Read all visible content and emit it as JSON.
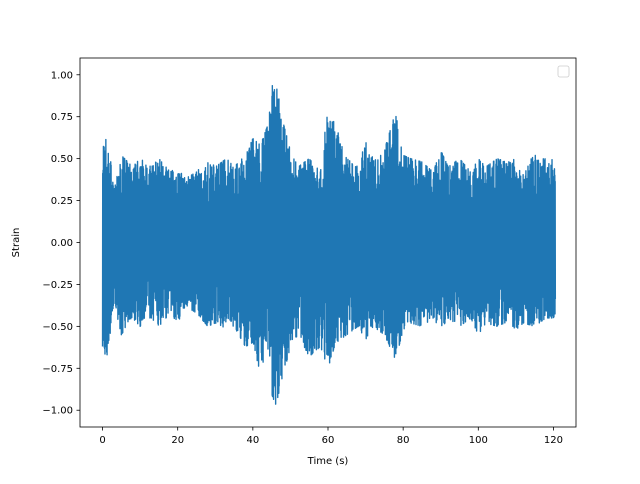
{
  "chart_data": {
    "type": "line",
    "title": "",
    "xlabel": "Time (s)",
    "ylabel": "Strain",
    "xlim": [
      -6,
      126
    ],
    "ylim": [
      -1.1,
      1.1
    ],
    "xticks": [
      0,
      20,
      40,
      60,
      80,
      100,
      120
    ],
    "yticks": [
      -1.0,
      -0.75,
      -0.5,
      -0.25,
      0.0,
      0.25,
      0.5,
      0.75,
      1.0
    ],
    "xtick_labels": [
      "0",
      "20",
      "40",
      "60",
      "80",
      "100",
      "120"
    ],
    "ytick_labels": [
      "−1.00",
      "−0.75",
      "−0.50",
      "−0.25",
      "0.00",
      "0.25",
      "0.50",
      "0.75",
      "1.00"
    ],
    "grid": false,
    "legend": {
      "placement": "upper-right",
      "entries": []
    },
    "colors": {
      "series": "#1f77b4",
      "axes": "#000000",
      "background": "#ffffff"
    },
    "series": [
      {
        "x_start": 0,
        "x_end": 120.5,
        "envelope": {
          "x": [
            0,
            0.5,
            1,
            2,
            3,
            5,
            8,
            10,
            13,
            15,
            18,
            20,
            22,
            25,
            28,
            30,
            33,
            35,
            38,
            40,
            42,
            44,
            45,
            46,
            48,
            50,
            52,
            55,
            58,
            60,
            62,
            65,
            68,
            70,
            72,
            75,
            78,
            80,
            82,
            85,
            88,
            90,
            92,
            95,
            98,
            100,
            102,
            105,
            108,
            110,
            112,
            115,
            118,
            120,
            120.5
          ],
          "upper": [
            0.68,
            0.67,
            0.62,
            0.52,
            0.3,
            0.52,
            0.45,
            0.5,
            0.45,
            0.5,
            0.42,
            0.45,
            0.38,
            0.42,
            0.5,
            0.45,
            0.5,
            0.45,
            0.52,
            0.62,
            0.58,
            0.7,
            0.92,
            1.0,
            0.72,
            0.55,
            0.45,
            0.5,
            0.42,
            0.82,
            0.7,
            0.5,
            0.45,
            0.6,
            0.5,
            0.55,
            0.78,
            0.52,
            0.5,
            0.48,
            0.42,
            0.55,
            0.45,
            0.5,
            0.42,
            0.5,
            0.45,
            0.5,
            0.48,
            0.5,
            0.45,
            0.52,
            0.5,
            0.52,
            0.37
          ],
          "lower": [
            -0.62,
            -0.65,
            -0.7,
            -0.55,
            -0.35,
            -0.55,
            -0.45,
            -0.5,
            -0.45,
            -0.5,
            -0.42,
            -0.48,
            -0.38,
            -0.42,
            -0.5,
            -0.48,
            -0.52,
            -0.5,
            -0.62,
            -0.6,
            -0.78,
            -0.65,
            -0.9,
            -0.98,
            -0.8,
            -0.62,
            -0.55,
            -0.68,
            -0.62,
            -0.75,
            -0.6,
            -0.55,
            -0.5,
            -0.58,
            -0.5,
            -0.55,
            -0.7,
            -0.52,
            -0.48,
            -0.5,
            -0.45,
            -0.52,
            -0.45,
            -0.5,
            -0.45,
            -0.55,
            -0.48,
            -0.5,
            -0.47,
            -0.52,
            -0.48,
            -0.5,
            -0.45,
            -0.45,
            -0.42
          ]
        }
      }
    ]
  }
}
